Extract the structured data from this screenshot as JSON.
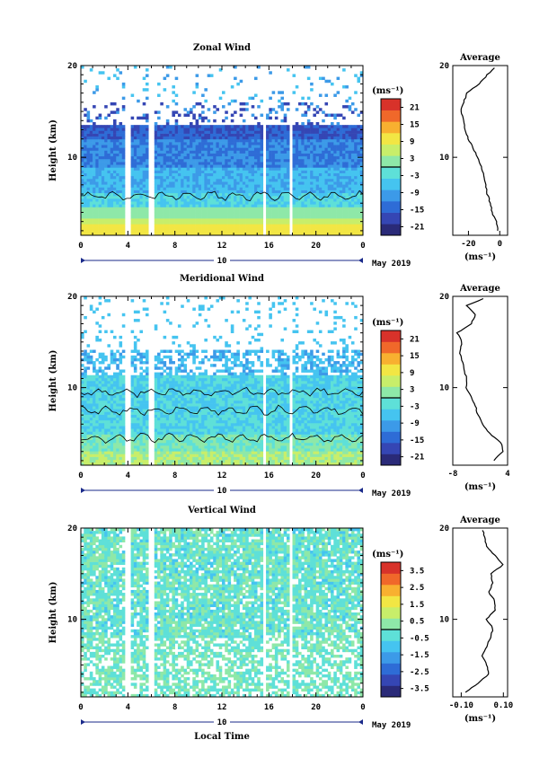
{
  "date_label": "May 2019",
  "colors": {
    "scale": [
      "#2a2a78",
      "#3546b4",
      "#2e6cd6",
      "#3c9ae8",
      "#45c4f0",
      "#5ee0d8",
      "#8ee8a8",
      "#c8ee6a",
      "#f2e644",
      "#f8b030",
      "#f0682a",
      "#d8322a"
    ],
    "contour": "#000000",
    "frame": "#000000",
    "axis_bar": "#1a2a8a"
  },
  "panels": [
    {
      "title": "Zonal Wind",
      "ylabel": "Height (km)",
      "yticks": [
        "20",
        "10"
      ],
      "xticks": [
        "0",
        "4",
        "8",
        "12",
        "16",
        "20",
        "0"
      ],
      "day_label": "10",
      "colorbar": {
        "unit": "(ms⁻¹)",
        "ticks": [
          "21",
          "15",
          "9",
          "3",
          "-3",
          "-9",
          "-15",
          "-21"
        ]
      },
      "profile": {
        "title": "Average",
        "xticks": [
          "-20",
          "0"
        ],
        "unit": "(ms⁻¹)",
        "yticks": [
          "20",
          "10"
        ]
      }
    },
    {
      "title": "Meridional Wind",
      "ylabel": "Height (km)",
      "yticks": [
        "20",
        "10"
      ],
      "xticks": [
        "0",
        "4",
        "8",
        "12",
        "16",
        "20",
        "0"
      ],
      "day_label": "10",
      "colorbar": {
        "unit": "(ms⁻¹)",
        "ticks": [
          "21",
          "15",
          "9",
          "3",
          "-3",
          "-9",
          "-15",
          "-21"
        ]
      },
      "profile": {
        "title": "Average",
        "xticks": [
          "-8",
          "4"
        ],
        "unit": "(ms⁻¹)",
        "yticks": [
          "20",
          "10"
        ]
      }
    },
    {
      "title": "Vertical Wind",
      "ylabel": "Height (km)",
      "yticks": [
        "20",
        "10"
      ],
      "xticks": [
        "0",
        "4",
        "8",
        "12",
        "16",
        "20",
        "0"
      ],
      "day_label": "10",
      "colorbar": {
        "unit": "(ms⁻¹)",
        "ticks": [
          "3.5",
          "2.5",
          "1.5",
          "0.5",
          "-0.5",
          "-1.5",
          "-2.5",
          "-3.5"
        ]
      },
      "profile": {
        "title": "Average",
        "xticks": [
          "-0.10",
          "0.10"
        ],
        "unit": "(ms⁻¹)",
        "yticks": [
          "20",
          "10"
        ]
      }
    }
  ],
  "xlabel": "Local Time",
  "chart_data": [
    {
      "type": "heatmap",
      "title": "Zonal Wind",
      "xlabel": "Local Time",
      "ylabel": "Height (km)",
      "xlim": [
        0,
        24
      ],
      "ylim": [
        1.5,
        20
      ],
      "clim": [
        -24,
        24
      ],
      "colorbar_unit": "ms-1",
      "missing_time_gaps_h": [
        [
          3.8,
          4.3
        ],
        [
          5.7,
          6.3
        ],
        [
          15.4,
          15.8
        ],
        [
          17.7,
          18.1
        ]
      ],
      "profile_heights_km": [
        2,
        3,
        4,
        5,
        6,
        7,
        8,
        9,
        10,
        11,
        12,
        13,
        14,
        15,
        16,
        17,
        18,
        19,
        20
      ],
      "profile_mean": [
        -1,
        -2,
        -5,
        -6,
        -8,
        -9,
        -10,
        -12,
        -14,
        -17,
        -20,
        -22,
        -23,
        -25,
        -23,
        -21,
        -13,
        -8,
        -2
      ]
    },
    {
      "type": "heatmap",
      "title": "Meridional Wind",
      "xlabel": "Local Time",
      "ylabel": "Height (km)",
      "xlim": [
        0,
        24
      ],
      "ylim": [
        1.5,
        20
      ],
      "clim": [
        -24,
        24
      ],
      "colorbar_unit": "ms-1",
      "missing_time_gaps_h": [
        [
          3.8,
          4.3
        ],
        [
          5.7,
          6.3
        ],
        [
          15.4,
          15.8
        ],
        [
          17.7,
          18.1
        ]
      ],
      "profile_heights_km": [
        2,
        3,
        4,
        5,
        6,
        7,
        8,
        9,
        10,
        11,
        12,
        13,
        14,
        15,
        16,
        17,
        18,
        19,
        20
      ],
      "profile_mean": [
        1,
        3,
        2.5,
        0,
        -1.5,
        -2.5,
        -3,
        -4,
        -5,
        -5,
        -5.5,
        -6,
        -6.5,
        -6,
        -7,
        -4,
        -3,
        -5,
        0
      ]
    },
    {
      "type": "heatmap",
      "title": "Vertical Wind",
      "xlabel": "Local Time",
      "ylabel": "Height (km)",
      "xlim": [
        0,
        24
      ],
      "ylim": [
        1.5,
        20
      ],
      "clim": [
        -4,
        4
      ],
      "colorbar_unit": "ms-1",
      "missing_time_gaps_h": [
        [
          3.8,
          4.3
        ],
        [
          5.7,
          6.3
        ],
        [
          15.4,
          15.8
        ],
        [
          17.7,
          18.1
        ]
      ],
      "profile_heights_km": [
        2,
        3,
        4,
        5,
        6,
        7,
        8,
        9,
        10,
        11,
        12,
        13,
        14,
        15,
        16,
        17,
        18,
        19,
        20
      ],
      "profile_mean": [
        -0.08,
        -0.02,
        0.03,
        0.02,
        0.0,
        0.02,
        0.04,
        0.05,
        0.02,
        0.06,
        0.06,
        0.03,
        0.05,
        0.04,
        0.1,
        0.06,
        0.02,
        0.01,
        0.0
      ]
    }
  ]
}
